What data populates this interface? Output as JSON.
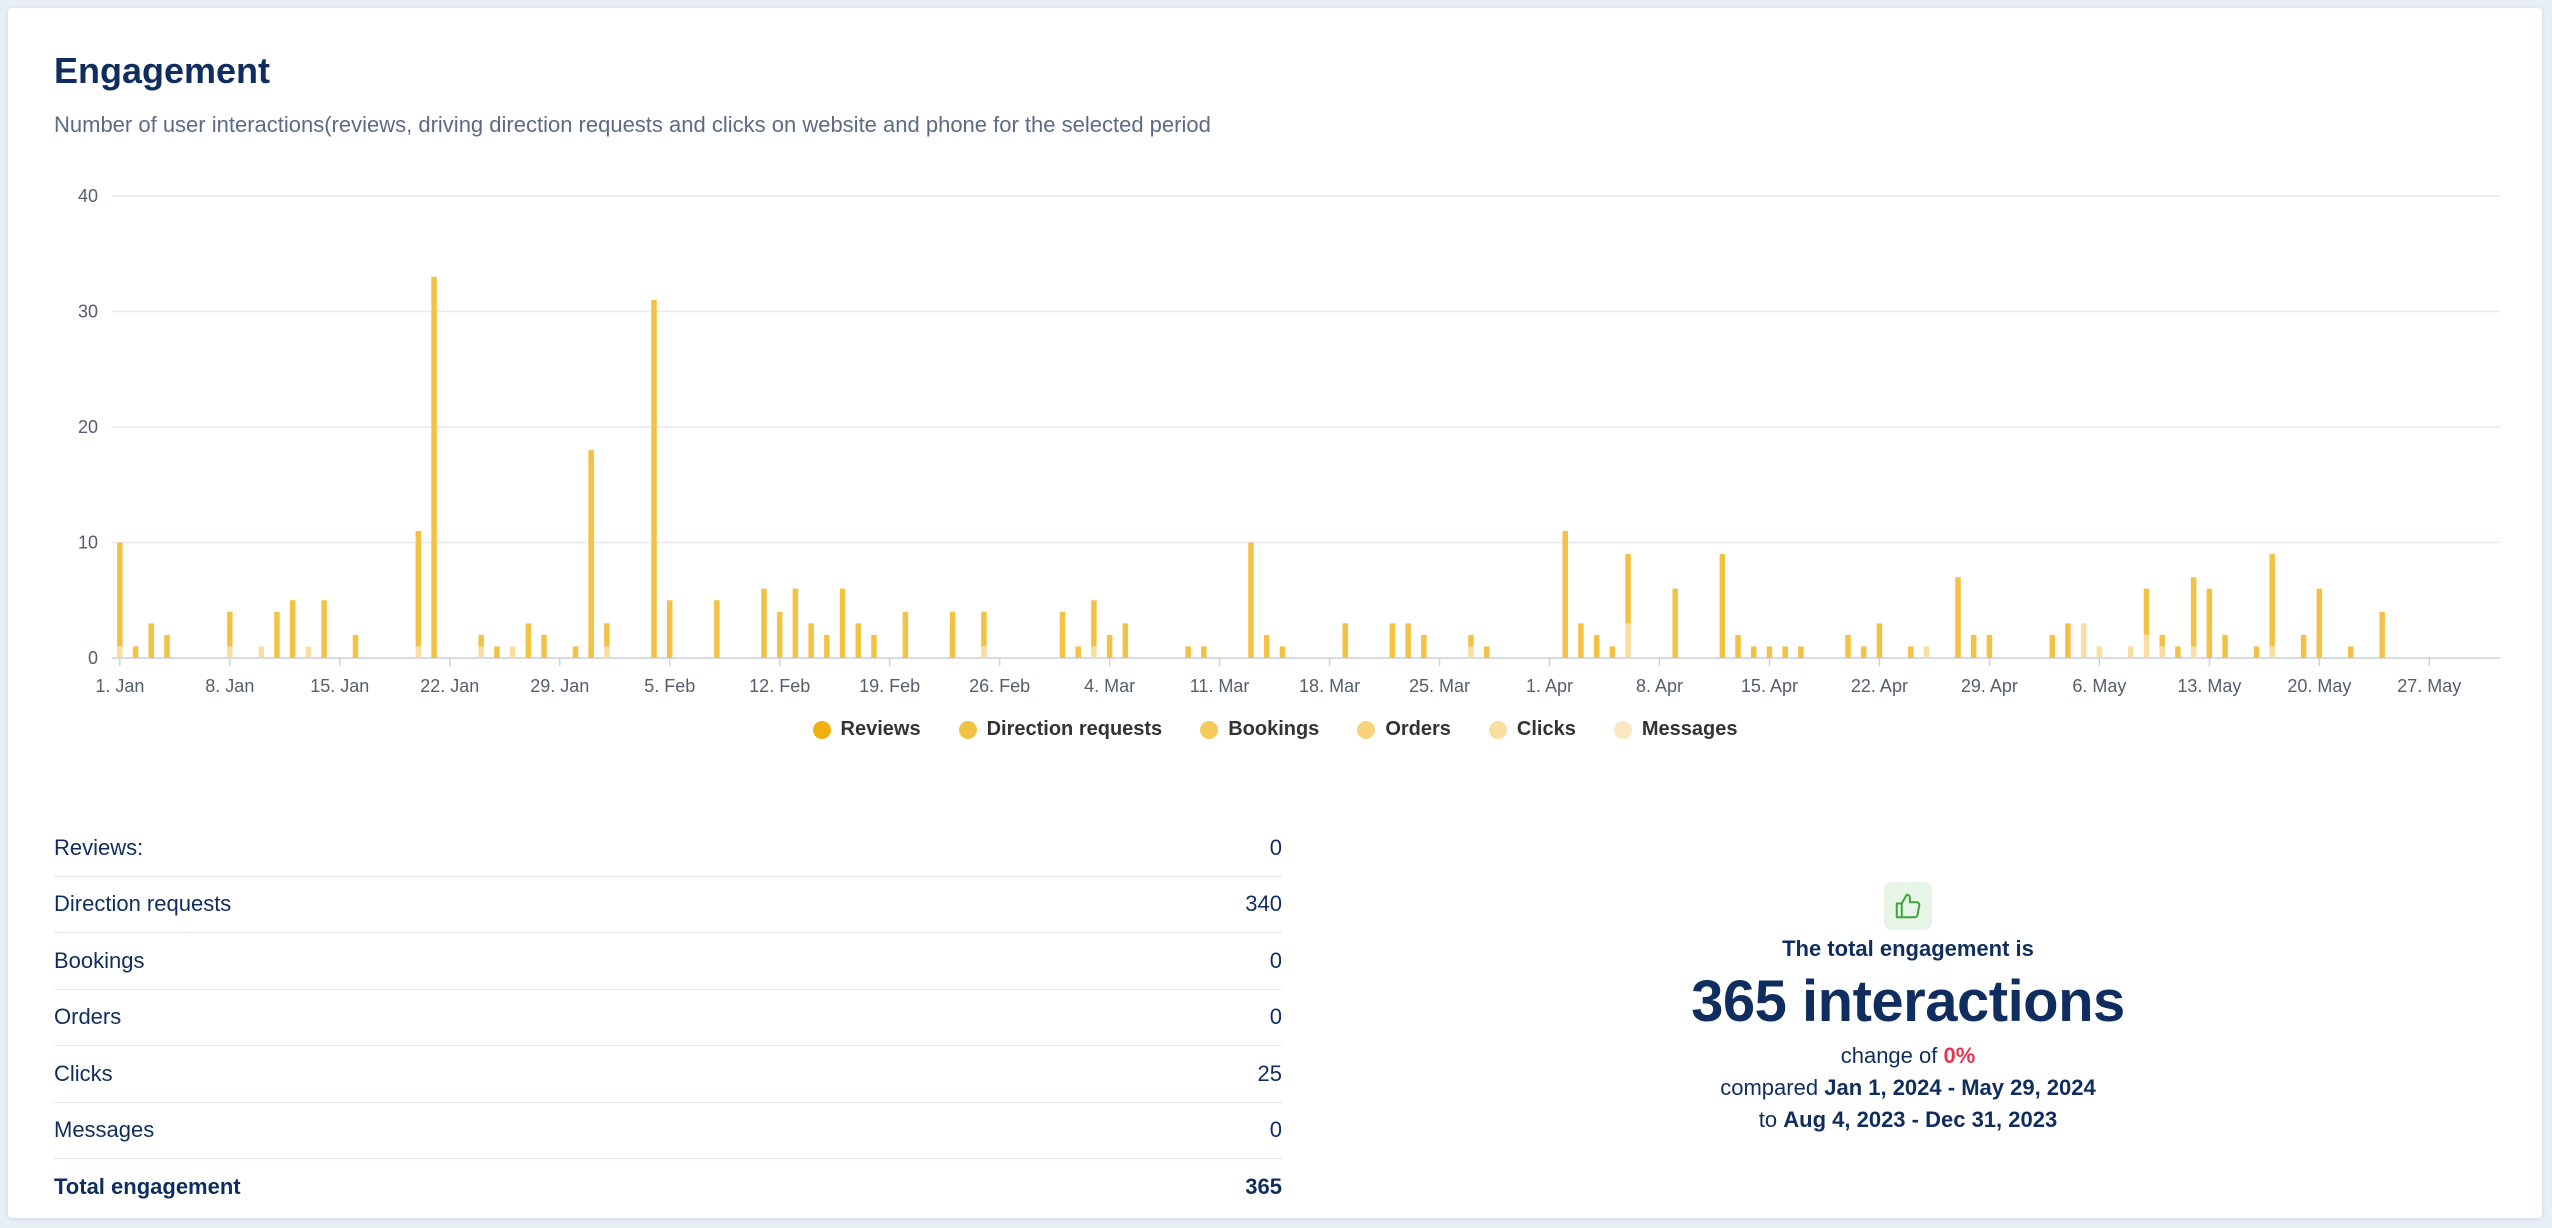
{
  "header": {
    "title": "Engagement",
    "subtitle": "Number of user interactions(reviews, driving direction requests and clicks on website and phone for the selected period"
  },
  "chart_data": {
    "type": "bar",
    "stacked": true,
    "xlabel": "",
    "ylabel": "",
    "ylim": [
      0,
      40
    ],
    "y_ticks": [
      0,
      10,
      20,
      30,
      40
    ],
    "x_start": "2024-01-01",
    "x_end": "2024-05-31",
    "x_ticks": [
      "1. Jan",
      "8. Jan",
      "15. Jan",
      "22. Jan",
      "29. Jan",
      "5. Feb",
      "12. Feb",
      "19. Feb",
      "26. Feb",
      "4. Mar",
      "11. Mar",
      "18. Mar",
      "25. Mar",
      "1. Apr",
      "8. Apr",
      "15. Apr",
      "22. Apr",
      "29. Apr",
      "6. May",
      "13. May",
      "20. May",
      "27. May"
    ],
    "grid": true,
    "legend_position": "bottom",
    "series": [
      {
        "name": "Reviews",
        "color": "#f0b10f"
      },
      {
        "name": "Direction requests",
        "color": "#f3c144"
      },
      {
        "name": "Bookings",
        "color": "#f5ca5b"
      },
      {
        "name": "Orders",
        "color": "#f7d47b"
      },
      {
        "name": "Clicks",
        "color": "#f9dea0"
      },
      {
        "name": "Messages",
        "color": "#fbe7c0"
      }
    ],
    "bars": [
      {
        "date": "2024-01-01",
        "direction": 9,
        "clicks": 1
      },
      {
        "date": "2024-01-02",
        "direction": 1,
        "clicks": 0
      },
      {
        "date": "2024-01-03",
        "direction": 3,
        "clicks": 0
      },
      {
        "date": "2024-01-04",
        "direction": 2,
        "clicks": 0
      },
      {
        "date": "2024-01-08",
        "direction": 3,
        "clicks": 1
      },
      {
        "date": "2024-01-10",
        "direction": 0,
        "clicks": 1
      },
      {
        "date": "2024-01-11",
        "direction": 4,
        "clicks": 0
      },
      {
        "date": "2024-01-12",
        "direction": 5,
        "clicks": 0
      },
      {
        "date": "2024-01-13",
        "direction": 0,
        "clicks": 1
      },
      {
        "date": "2024-01-14",
        "direction": 5,
        "clicks": 0
      },
      {
        "date": "2024-01-16",
        "direction": 2,
        "clicks": 0
      },
      {
        "date": "2024-01-20",
        "direction": 10,
        "clicks": 1
      },
      {
        "date": "2024-01-21",
        "direction": 33,
        "clicks": 0
      },
      {
        "date": "2024-01-24",
        "direction": 1,
        "clicks": 1
      },
      {
        "date": "2024-01-25",
        "direction": 1,
        "clicks": 0
      },
      {
        "date": "2024-01-26",
        "direction": 0,
        "clicks": 1
      },
      {
        "date": "2024-01-27",
        "direction": 3,
        "clicks": 0
      },
      {
        "date": "2024-01-28",
        "direction": 2,
        "clicks": 0
      },
      {
        "date": "2024-01-30",
        "direction": 1,
        "clicks": 0
      },
      {
        "date": "2024-01-31",
        "direction": 18,
        "clicks": 0
      },
      {
        "date": "2024-02-01",
        "direction": 2,
        "clicks": 1
      },
      {
        "date": "2024-02-04",
        "direction": 31,
        "clicks": 0
      },
      {
        "date": "2024-02-05",
        "direction": 5,
        "clicks": 0
      },
      {
        "date": "2024-02-08",
        "direction": 5,
        "clicks": 0
      },
      {
        "date": "2024-02-11",
        "direction": 6,
        "clicks": 0
      },
      {
        "date": "2024-02-12",
        "direction": 4,
        "clicks": 0
      },
      {
        "date": "2024-02-13",
        "direction": 6,
        "clicks": 0
      },
      {
        "date": "2024-02-14",
        "direction": 3,
        "clicks": 0
      },
      {
        "date": "2024-02-15",
        "direction": 2,
        "clicks": 0
      },
      {
        "date": "2024-02-16",
        "direction": 6,
        "clicks": 0
      },
      {
        "date": "2024-02-17",
        "direction": 3,
        "clicks": 0
      },
      {
        "date": "2024-02-18",
        "direction": 2,
        "clicks": 0
      },
      {
        "date": "2024-02-20",
        "direction": 4,
        "clicks": 0
      },
      {
        "date": "2024-02-23",
        "direction": 4,
        "clicks": 0
      },
      {
        "date": "2024-02-25",
        "direction": 3,
        "clicks": 1
      },
      {
        "date": "2024-03-01",
        "direction": 4,
        "clicks": 0
      },
      {
        "date": "2024-03-02",
        "direction": 1,
        "clicks": 0
      },
      {
        "date": "2024-03-03",
        "direction": 4,
        "clicks": 1
      },
      {
        "date": "2024-03-04",
        "direction": 2,
        "clicks": 0
      },
      {
        "date": "2024-03-05",
        "direction": 3,
        "clicks": 0
      },
      {
        "date": "2024-03-09",
        "direction": 1,
        "clicks": 0
      },
      {
        "date": "2024-03-10",
        "direction": 1,
        "clicks": 0
      },
      {
        "date": "2024-03-13",
        "direction": 10,
        "clicks": 0
      },
      {
        "date": "2024-03-14",
        "direction": 2,
        "clicks": 0
      },
      {
        "date": "2024-03-15",
        "direction": 1,
        "clicks": 0
      },
      {
        "date": "2024-03-19",
        "direction": 3,
        "clicks": 0
      },
      {
        "date": "2024-03-22",
        "direction": 3,
        "clicks": 0
      },
      {
        "date": "2024-03-23",
        "direction": 3,
        "clicks": 0
      },
      {
        "date": "2024-03-24",
        "direction": 2,
        "clicks": 0
      },
      {
        "date": "2024-03-27",
        "direction": 1,
        "clicks": 1
      },
      {
        "date": "2024-03-28",
        "direction": 1,
        "clicks": 0
      },
      {
        "date": "2024-04-02",
        "direction": 11,
        "clicks": 0
      },
      {
        "date": "2024-04-03",
        "direction": 3,
        "clicks": 0
      },
      {
        "date": "2024-04-04",
        "direction": 2,
        "clicks": 0
      },
      {
        "date": "2024-04-05",
        "direction": 1,
        "clicks": 0
      },
      {
        "date": "2024-04-06",
        "direction": 6,
        "clicks": 3
      },
      {
        "date": "2024-04-09",
        "direction": 6,
        "clicks": 0
      },
      {
        "date": "2024-04-12",
        "direction": 9,
        "clicks": 0
      },
      {
        "date": "2024-04-13",
        "direction": 2,
        "clicks": 0
      },
      {
        "date": "2024-04-14",
        "direction": 1,
        "clicks": 0
      },
      {
        "date": "2024-04-15",
        "direction": 1,
        "clicks": 0
      },
      {
        "date": "2024-04-16",
        "direction": 1,
        "clicks": 0
      },
      {
        "date": "2024-04-17",
        "direction": 1,
        "clicks": 0
      },
      {
        "date": "2024-04-20",
        "direction": 2,
        "clicks": 0
      },
      {
        "date": "2024-04-21",
        "direction": 1,
        "clicks": 0
      },
      {
        "date": "2024-04-22",
        "direction": 3,
        "clicks": 0
      },
      {
        "date": "2024-04-24",
        "direction": 1,
        "clicks": 0
      },
      {
        "date": "2024-04-25",
        "direction": 0,
        "clicks": 1
      },
      {
        "date": "2024-04-27",
        "direction": 7,
        "clicks": 0
      },
      {
        "date": "2024-04-28",
        "direction": 2,
        "clicks": 0
      },
      {
        "date": "2024-04-29",
        "direction": 2,
        "clicks": 0
      },
      {
        "date": "2024-05-03",
        "direction": 2,
        "clicks": 0
      },
      {
        "date": "2024-05-04",
        "direction": 3,
        "clicks": 0
      },
      {
        "date": "2024-05-05",
        "direction": 0,
        "clicks": 3
      },
      {
        "date": "2024-05-06",
        "direction": 0,
        "clicks": 1
      },
      {
        "date": "2024-05-08",
        "direction": 0,
        "clicks": 1
      },
      {
        "date": "2024-05-09",
        "direction": 4,
        "clicks": 2
      },
      {
        "date": "2024-05-10",
        "direction": 1,
        "clicks": 1
      },
      {
        "date": "2024-05-11",
        "direction": 1,
        "clicks": 0
      },
      {
        "date": "2024-05-12",
        "direction": 6,
        "clicks": 1
      },
      {
        "date": "2024-05-13",
        "direction": 6,
        "clicks": 0
      },
      {
        "date": "2024-05-14",
        "direction": 2,
        "clicks": 0
      },
      {
        "date": "2024-05-16",
        "direction": 1,
        "clicks": 0
      },
      {
        "date": "2024-05-17",
        "direction": 8,
        "clicks": 1
      },
      {
        "date": "2024-05-19",
        "direction": 2,
        "clicks": 0
      },
      {
        "date": "2024-05-20",
        "direction": 6,
        "clicks": 0
      },
      {
        "date": "2024-05-22",
        "direction": 1,
        "clicks": 0
      },
      {
        "date": "2024-05-24",
        "direction": 4,
        "clicks": 0
      }
    ]
  },
  "stats": {
    "rows": [
      {
        "label": "Reviews:",
        "value": "0"
      },
      {
        "label": "Direction requests",
        "value": "340"
      },
      {
        "label": "Bookings",
        "value": "0"
      },
      {
        "label": "Orders",
        "value": "0"
      },
      {
        "label": "Clicks",
        "value": "25"
      },
      {
        "label": "Messages",
        "value": "0"
      }
    ],
    "total": {
      "label": "Total engagement",
      "value": "365"
    }
  },
  "summary": {
    "icon": "thumbs-up-icon",
    "label": "The total engagement is",
    "value": "365 interactions",
    "change_prefix": "change of",
    "change_value": "0%",
    "compared_prefix": "compared",
    "compared_range": "Jan 1, 2024 - May 29, 2024",
    "to_prefix": "to",
    "to_range": "Aug 4, 2023 - Dec 31, 2023"
  }
}
